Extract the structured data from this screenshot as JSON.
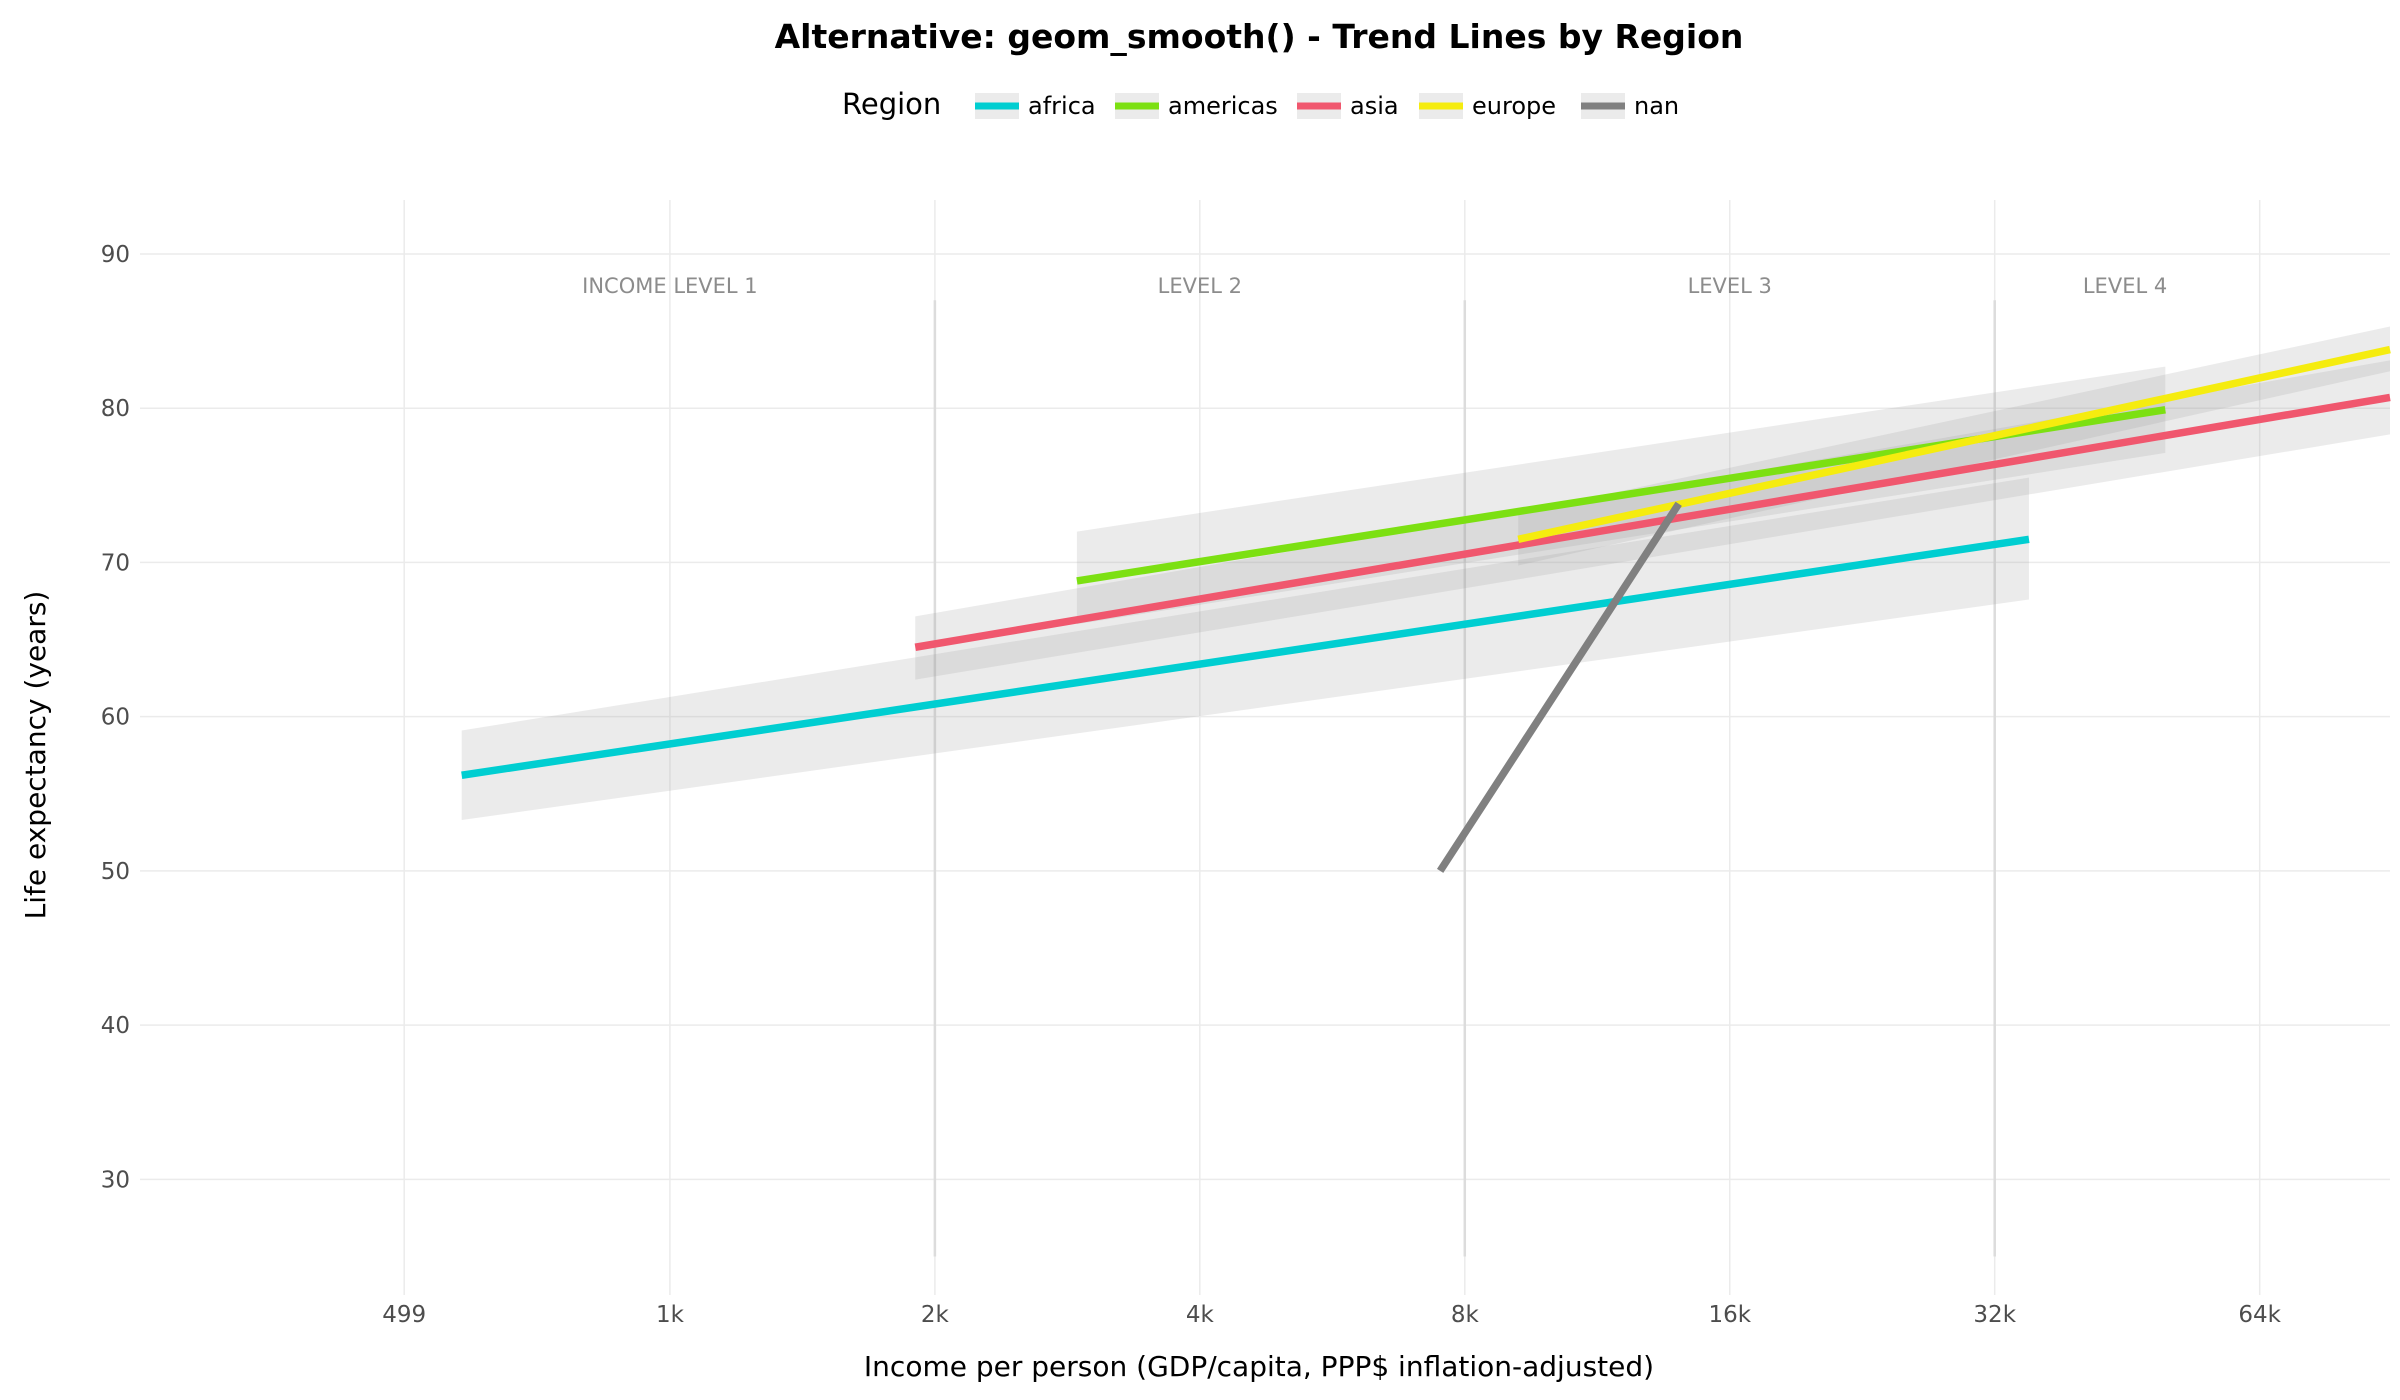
{
  "chart_data": {
    "type": "line",
    "title": "Alternative: geom_smooth() - Trend Lines by Region",
    "xlabel": "Income per person (GDP/capita, PPP$ inflation-adjusted)",
    "ylabel": "Life expectancy (years)",
    "x_scale": "log2",
    "xlim": [
      250,
      90000
    ],
    "ylim": [
      22.5,
      93.5
    ],
    "x_ticks": [
      {
        "value": 499,
        "label": "499"
      },
      {
        "value": 1000,
        "label": "1k"
      },
      {
        "value": 2000,
        "label": "2k"
      },
      {
        "value": 4000,
        "label": "4k"
      },
      {
        "value": 8000,
        "label": "8k"
      },
      {
        "value": 16000,
        "label": "16k"
      },
      {
        "value": 32000,
        "label": "32k"
      },
      {
        "value": 64000,
        "label": "64k"
      }
    ],
    "y_ticks": [
      30,
      40,
      50,
      60,
      70,
      80,
      90
    ],
    "grid": true,
    "legend": {
      "title": "Region",
      "position": "top"
    },
    "income_levels": {
      "boundaries": [
        2000,
        8000,
        32000
      ],
      "labels": [
        {
          "x": 1000,
          "text": "INCOME LEVEL 1"
        },
        {
          "x": 4000,
          "text": "LEVEL 2"
        },
        {
          "x": 16000,
          "text": "LEVEL 3"
        },
        {
          "x": 45000,
          "text": "LEVEL 4"
        }
      ]
    },
    "series": [
      {
        "name": "africa",
        "color": "#00CED1",
        "x": [
          580,
          35000
        ],
        "y": [
          56.2,
          71.5
        ],
        "ci_lower": [
          53.3,
          67.6
        ],
        "ci_upper": [
          59.1,
          75.5
        ]
      },
      {
        "name": "americas",
        "color": "#7CE012",
        "x": [
          2900,
          50000
        ],
        "y": [
          68.8,
          79.9
        ],
        "ci_lower": [
          66.0,
          77.1
        ],
        "ci_upper": [
          72.0,
          82.7
        ]
      },
      {
        "name": "asia",
        "color": "#F0576E",
        "x": [
          1900,
          90000
        ],
        "y": [
          64.5,
          80.7
        ],
        "ci_lower": [
          62.4,
          78.3
        ],
        "ci_upper": [
          66.5,
          83.1
        ]
      },
      {
        "name": "europe",
        "color": "#F5EC0F",
        "x": [
          9200,
          90000
        ],
        "y": [
          71.5,
          83.8
        ],
        "ci_lower": [
          69.8,
          82.4
        ],
        "ci_upper": [
          73.2,
          85.3
        ]
      },
      {
        "name": "nan",
        "color": "#808080",
        "x": [
          7500,
          14000
        ],
        "y": [
          50.0,
          73.8
        ]
      }
    ]
  }
}
